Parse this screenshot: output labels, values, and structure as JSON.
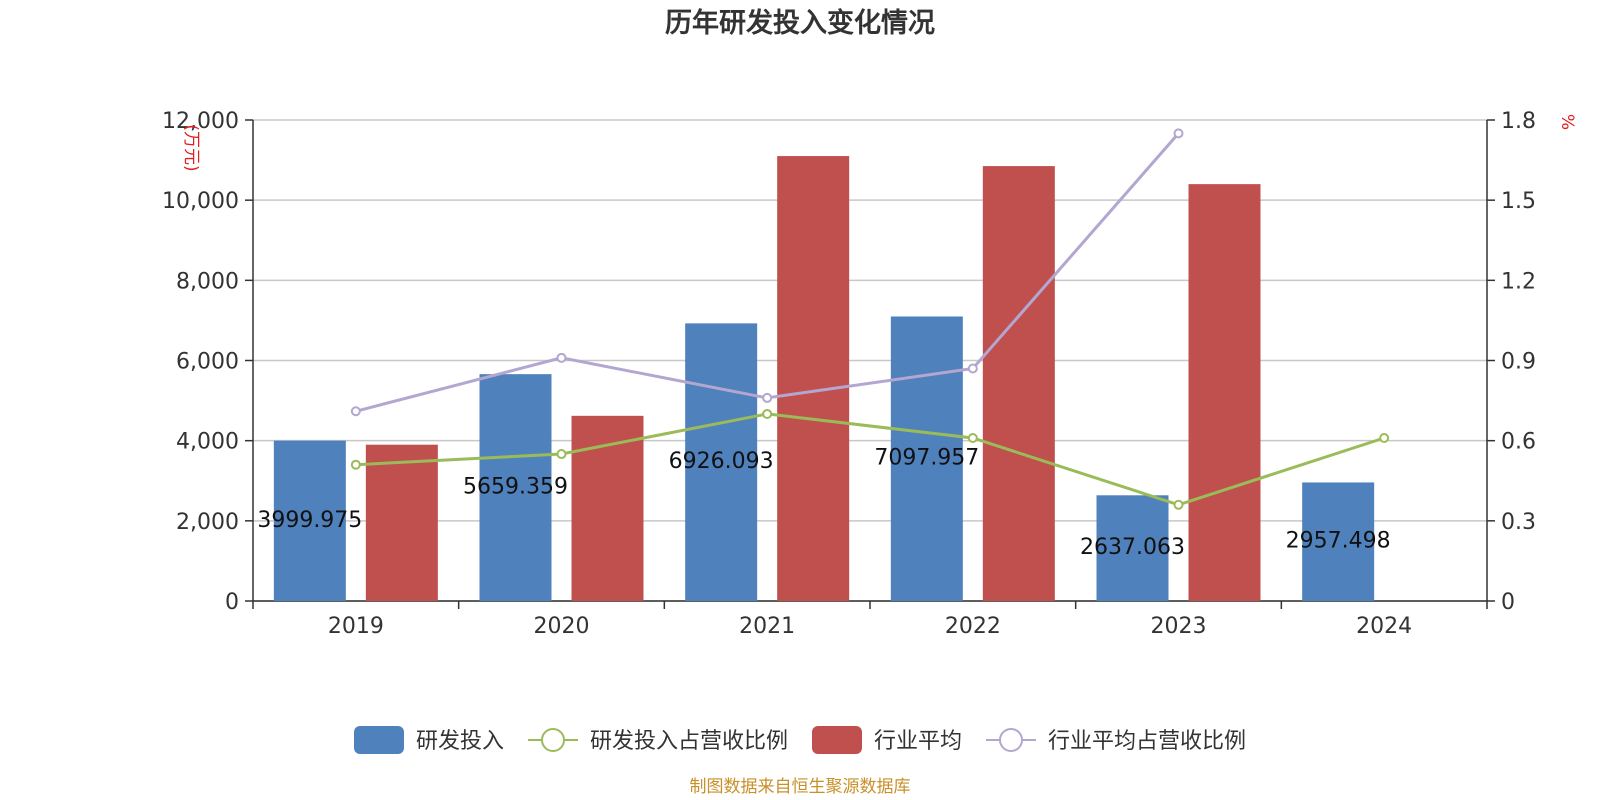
{
  "chart_data": {
    "type": "bar",
    "title": "历年研发投入变化情况",
    "categories": [
      "2019",
      "2020",
      "2021",
      "2022",
      "2023",
      "2024"
    ],
    "y_left": {
      "unit": "(万元)",
      "ylim": [
        0,
        12000
      ],
      "ticks": [
        "0",
        "2,000",
        "4,000",
        "6,000",
        "8,000",
        "10,000",
        "12,000"
      ],
      "tick_values": [
        0,
        2000,
        4000,
        6000,
        8000,
        10000,
        12000
      ]
    },
    "y_right": {
      "unit": "%",
      "ylim": [
        0,
        1.8
      ],
      "ticks": [
        "0",
        "0.3",
        "0.6",
        "0.9",
        "1.2",
        "1.5",
        "1.8"
      ],
      "tick_values": [
        0,
        0.3,
        0.6,
        0.9,
        1.2,
        1.5,
        1.8
      ]
    },
    "grid": true,
    "legend_position": "bottom",
    "series": [
      {
        "name": "研发投入",
        "type": "bar",
        "axis": "left",
        "color": "#4f81bd",
        "values": [
          3999.975,
          5659.359,
          6926.093,
          7097.957,
          2637.063,
          2957.498
        ],
        "labels": [
          "3999.975",
          "5659.359",
          "6926.093",
          "7097.957",
          "2637.063",
          "2957.498"
        ]
      },
      {
        "name": "研发投入占营收比例",
        "type": "line",
        "axis": "right",
        "color": "#9bbb59",
        "values": [
          0.51,
          0.55,
          0.7,
          0.61,
          0.36,
          0.61
        ]
      },
      {
        "name": "行业平均",
        "type": "bar",
        "axis": "left",
        "color": "#c0504d",
        "values": [
          3900,
          4620,
          11100,
          10850,
          10400,
          null
        ]
      },
      {
        "name": "行业平均占营收比例",
        "type": "line",
        "axis": "right",
        "color": "#b3a6d0",
        "values": [
          0.71,
          0.91,
          0.76,
          0.87,
          1.75,
          null
        ]
      }
    ],
    "source": "制图数据来自恒生聚源数据库"
  }
}
